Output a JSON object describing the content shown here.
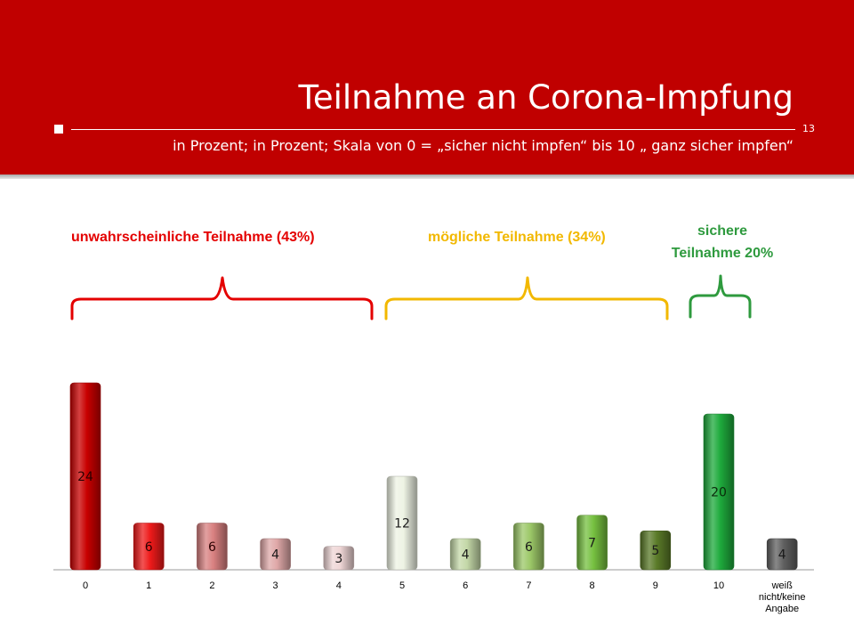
{
  "header": {
    "title": "Teilnahme an Corona-Impfung",
    "subtitle": "in Prozent; in Prozent; Skala von 0 = „sicher nicht impfen“  bis 10 „ ganz sicher impfen“",
    "page_number": "13"
  },
  "groups": [
    {
      "label": "unwahrscheinliche Teilnahme (43%)",
      "color": "#e40000"
    },
    {
      "label": "mögliche Teilnahme (34%)",
      "color": "#f2b800"
    },
    {
      "label_line1": "sichere",
      "label_line2": "Teilnahme 20%",
      "color": "#2e9a3e"
    }
  ],
  "colors": {
    "header_bg": "#c00000",
    "unlikely": "#e40000",
    "possible": "#f2b800",
    "certain": "#2e9a3e"
  },
  "chart_data": {
    "type": "bar",
    "categories": [
      "0",
      "1",
      "2",
      "3",
      "4",
      "5",
      "6",
      "7",
      "8",
      "9",
      "10",
      "weiß nicht/keine Angabe"
    ],
    "values": [
      24,
      6,
      6,
      4,
      3,
      12,
      4,
      6,
      7,
      5,
      20,
      4
    ],
    "bar_colors": [
      "#c80000",
      "#ee1a1a",
      "#d88080",
      "#dfa8a8",
      "#efd6d6",
      "#eef3e4",
      "#c4d8a8",
      "#9cc868",
      "#76c040",
      "#5a7a28",
      "#1eaa3c",
      "#606060"
    ],
    "label_colors": [
      "#2a0000",
      "#2a0000",
      "#2a0000",
      "#1a1a1a",
      "#1a1a1a",
      "#1a1a1a",
      "#1a1a1a",
      "#1a1a1a",
      "#1a1a1a",
      "#1a1a1a",
      "#0a2a0a",
      "#1a1a1a"
    ],
    "ylim": [
      0,
      24
    ]
  }
}
